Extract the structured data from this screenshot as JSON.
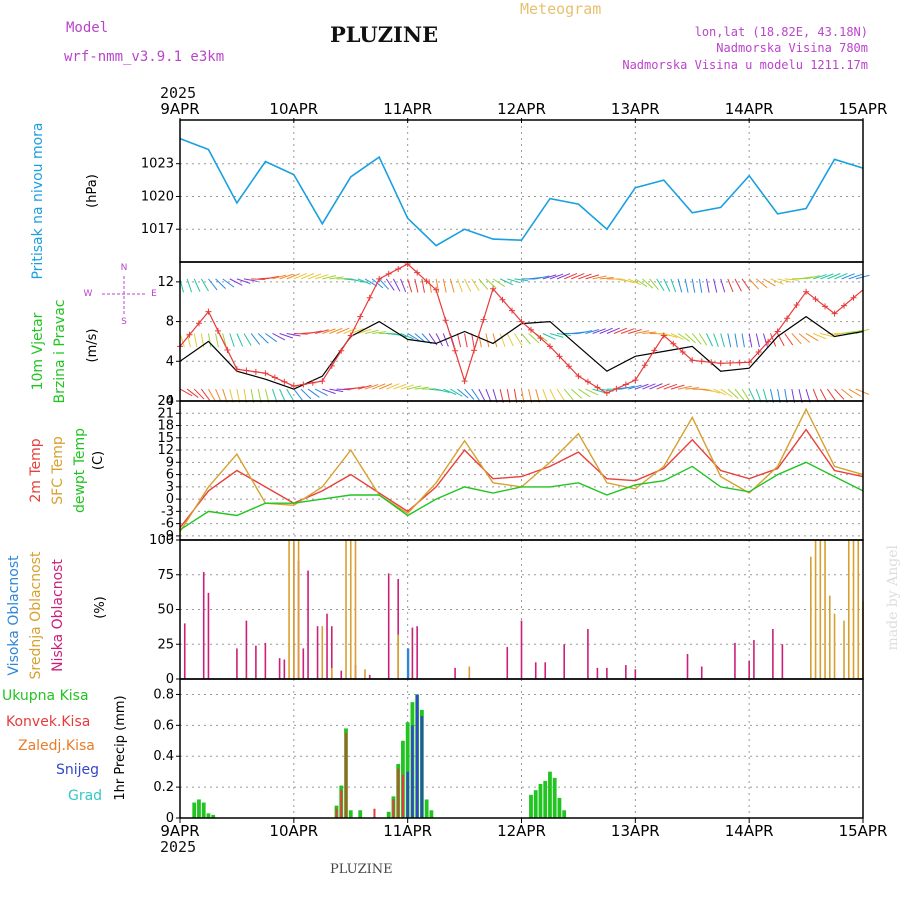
{
  "header": {
    "model_label": "Model",
    "model_name": "wrf-nmm_v3.9.1  e3km",
    "title": "PLUZINE",
    "product": "Meteogram",
    "coords": "lon,lat (18.82E, 43.18N)",
    "elevation": "Nadmorska Visina 780m",
    "model_elevation": "Nadmorska Visina u modelu 1211.17m",
    "top_year": "2025",
    "bottom_year": "2025",
    "footer": "PLUZINE",
    "watermark": "made by Angel"
  },
  "colors": {
    "pressure": "#1a9fe0",
    "temp2m": "#e8403a",
    "sfc": "#d8a030",
    "dewpt": "#22c422",
    "wind_speed": "#000000",
    "gust": "#e83a3a",
    "cloud_high": "#2f86d6",
    "cloud_mid": "#d8a030",
    "cloud_low": "#cc1f7a",
    "rain_total": "#22c422",
    "rain_conv": "#e83a3a",
    "rain_frz": "#e87c2a",
    "snow": "#3348c8",
    "grad": "#33c6c6",
    "axis_title_purple": "#bb44cc"
  },
  "chart_data": [
    {
      "type": "line",
      "id": "pressure",
      "ylabel_left": "Pritisak na nivou mora",
      "ylabel_right": "(hPa)",
      "ylim": [
        1014,
        1027
      ],
      "yticks": [
        "1017",
        "1020",
        "1023"
      ],
      "ytick_values": [
        1017,
        1020,
        1023
      ],
      "x_hours": [
        0,
        6,
        12,
        18,
        24,
        30,
        36,
        42,
        48,
        54,
        60,
        66,
        72,
        78,
        84,
        90,
        96,
        102,
        108,
        114,
        120,
        126,
        132,
        138,
        144
      ],
      "series": [
        {
          "values": [
            1025.3,
            1024.3,
            1019.4,
            1023.2,
            1022.0,
            1017.5,
            1021.8,
            1023.6,
            1018.0,
            1015.5,
            1017.0,
            1016.1,
            1016.0,
            1019.8,
            1019.3,
            1017.0,
            1020.8,
            1021.5,
            1018.5,
            1019.0,
            1021.9,
            1018.4,
            1018.9,
            1023.4,
            1022.6
          ]
        }
      ]
    },
    {
      "type": "line",
      "id": "wind",
      "ylabel_left": [
        "10m Vjetar",
        "Brzina i Pravac"
      ],
      "ylabel_right": "(m/s)",
      "compass": [
        "N",
        "W",
        "E",
        "S"
      ],
      "ylim": [
        0,
        14
      ],
      "yticks": [
        "0",
        "4",
        "8",
        "12"
      ],
      "ytick_values": [
        0,
        4,
        8,
        12
      ],
      "x_hours": [
        0,
        6,
        12,
        18,
        24,
        30,
        36,
        42,
        48,
        54,
        60,
        66,
        72,
        78,
        84,
        90,
        96,
        102,
        108,
        114,
        120,
        126,
        132,
        138,
        144
      ],
      "series": [
        {
          "values": [
            4,
            6,
            3,
            2.2,
            1.2,
            2.5,
            6.5,
            8,
            6.2,
            5.8,
            7,
            5.8,
            7.8,
            8,
            5.5,
            3,
            4.5,
            5,
            5.5,
            3,
            3.3,
            6.5,
            8.5,
            6.5,
            7
          ]
        },
        {
          "values": [
            5.5,
            9,
            3.2,
            2.8,
            1.5,
            2,
            6.6,
            12.3,
            13.8,
            11.2,
            2,
            11.3,
            8,
            5.5,
            2.5,
            0.8,
            2.1,
            6.6,
            4.1,
            3.8,
            3.9,
            7,
            11,
            8.8,
            11.2
          ]
        }
      ]
    },
    {
      "type": "line",
      "id": "temperature",
      "ylabel_left": [
        "2m Temp",
        "SFC Temp",
        "dewpt Temp"
      ],
      "ylabel_right": "(C)",
      "ylim": [
        -10,
        24
      ],
      "yticks": [
        "-9",
        "-6",
        "-3",
        "0",
        "3",
        "6",
        "9",
        "12",
        "15",
        "18",
        "21",
        "24"
      ],
      "ytick_values": [
        -9,
        -6,
        -3,
        0,
        3,
        6,
        9,
        12,
        15,
        18,
        21,
        24
      ],
      "x_hours": [
        0,
        6,
        12,
        18,
        24,
        30,
        36,
        42,
        48,
        54,
        60,
        66,
        72,
        78,
        84,
        90,
        96,
        102,
        108,
        114,
        120,
        126,
        132,
        138,
        144
      ],
      "series": [
        {
          "values": [
            -7,
            2,
            7,
            3,
            -1,
            2,
            6,
            1.5,
            -3,
            3,
            12,
            5,
            5.5,
            8,
            11.5,
            5,
            4.5,
            7.5,
            14.5,
            7,
            5,
            7.5,
            17,
            7,
            5.5
          ]
        },
        {
          "values": [
            -8,
            3,
            11,
            -1,
            -1.5,
            3,
            12,
            1,
            -3.5,
            4,
            14.3,
            4,
            3,
            9,
            16,
            4,
            2.5,
            8,
            20,
            5.5,
            1.5,
            8,
            22,
            8,
            6
          ]
        },
        {
          "values": [
            -7.5,
            -3,
            -4,
            -1,
            -1,
            0,
            1,
            1,
            -4,
            0,
            3,
            1.5,
            3,
            3,
            4,
            1,
            3.5,
            4.5,
            8,
            3,
            1.8,
            6,
            9,
            5.5,
            2
          ]
        }
      ]
    },
    {
      "type": "bar",
      "id": "clouds",
      "ylabel_left": [
        "Visoka Oblacnost",
        "Srednja Oblacnost",
        "Niska Oblacnost"
      ],
      "ylabel_right": "(%)",
      "ylim": [
        0,
        100
      ],
      "yticks": [
        "0",
        "25",
        "50",
        "75",
        "100"
      ],
      "ytick_values": [
        0,
        25,
        50,
        75,
        100
      ],
      "series": [
        {
          "name": "Niska Oblacnost",
          "x_hours": [
            1,
            5,
            6,
            12,
            14,
            16,
            18,
            21,
            22,
            24,
            25,
            26,
            27,
            29,
            31,
            32,
            34,
            37,
            40,
            44,
            46,
            49,
            50,
            58,
            69,
            72,
            75,
            77,
            81,
            86,
            88,
            90,
            94,
            96,
            107,
            110,
            117,
            120,
            121,
            125,
            127
          ],
          "values": [
            40,
            77,
            62,
            22,
            42,
            24,
            26,
            15,
            14,
            98,
            85,
            22,
            78,
            38,
            47,
            38,
            6,
            10,
            3,
            76,
            72,
            37,
            38,
            8,
            23,
            42,
            12,
            12,
            25,
            36,
            8,
            8,
            10,
            7,
            18,
            9,
            26,
            13,
            28,
            36,
            25
          ]
        },
        {
          "name": "Srednja Oblacnost",
          "x_hours": [
            23,
            24,
            25,
            30,
            32,
            35,
            36,
            37,
            39,
            46,
            61,
            133,
            134,
            135,
            136,
            137,
            138,
            140,
            141,
            142,
            143,
            144
          ],
          "values": [
            100,
            100,
            100,
            38,
            8,
            100,
            100,
            100,
            7,
            32,
            9,
            88,
            100,
            100,
            100,
            60,
            47,
            42,
            100,
            100,
            100,
            56
          ]
        },
        {
          "name": "Visoka Oblacnost",
          "x_hours": [
            48
          ],
          "values": [
            22
          ]
        }
      ]
    },
    {
      "type": "bar",
      "id": "precip",
      "ylabel_left": [
        "Ukupna Kisa",
        "Konvek.Kisa",
        "Zaledj.Kisa",
        "Snijeg",
        "Grad"
      ],
      "ylabel_right": "1hr Precip (mm)",
      "ylim": [
        0,
        0.9
      ],
      "yticks": [
        "0",
        "0.2",
        "0.4",
        "0.6",
        "0.8"
      ],
      "ytick_values": [
        0,
        0.2,
        0.4,
        0.6,
        0.8
      ],
      "series": [
        {
          "name": "Ukupna Kisa",
          "x_hours": [
            3,
            4,
            5,
            6,
            7,
            33,
            34,
            35,
            36,
            38,
            44,
            45,
            46,
            47,
            48,
            49,
            50,
            51,
            52,
            53,
            74,
            75,
            76,
            77,
            78,
            79,
            80,
            81
          ],
          "values": [
            0.1,
            0.12,
            0.1,
            0.03,
            0.02,
            0.08,
            0.21,
            0.58,
            0.05,
            0.05,
            0.04,
            0.14,
            0.35,
            0.5,
            0.62,
            0.75,
            0.8,
            0.7,
            0.12,
            0.05,
            0.15,
            0.18,
            0.22,
            0.24,
            0.3,
            0.26,
            0.13,
            0.05
          ]
        },
        {
          "name": "Konvek.Kisa",
          "x_hours": [
            33,
            34,
            35,
            41,
            45,
            46,
            47
          ],
          "values": [
            0.06,
            0.18,
            0.55,
            0.06,
            0.12,
            0.32,
            0.28
          ]
        },
        {
          "name": "Snijeg",
          "x_hours": [
            48,
            49,
            50,
            51
          ],
          "values": [
            0.3,
            0.6,
            0.8,
            0.66
          ]
        }
      ]
    }
  ],
  "xaxis": {
    "range_hours": [
      0,
      144
    ],
    "tick_labels": [
      "9APR",
      "10APR",
      "11APR",
      "12APR",
      "13APR",
      "14APR",
      "15APR"
    ],
    "tick_hours": [
      0,
      24,
      48,
      72,
      96,
      120,
      144
    ]
  }
}
